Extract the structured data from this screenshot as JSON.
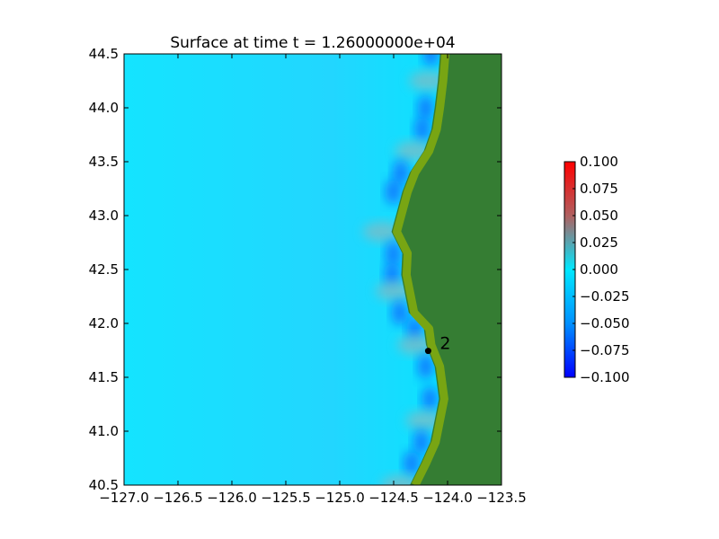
{
  "chart_data": {
    "type": "heatmap",
    "title": "Surface at time t = 1.26000000e+04",
    "xlabel": "",
    "ylabel": "",
    "xlim": [
      -127.0,
      -123.5
    ],
    "ylim": [
      40.5,
      44.5
    ],
    "x_ticks": [
      -127.0,
      -126.5,
      -126.0,
      -125.5,
      -125.0,
      -124.5,
      -124.0,
      -123.5
    ],
    "x_tick_labels": [
      "−127.0",
      "−126.5",
      "−126.0",
      "−125.5",
      "−125.0",
      "−124.5",
      "−124.0",
      "−123.5"
    ],
    "y_ticks": [
      40.5,
      41.0,
      41.5,
      42.0,
      42.5,
      43.0,
      43.5,
      44.0,
      44.5
    ],
    "y_tick_labels": [
      "40.5",
      "41.0",
      "41.5",
      "42.0",
      "42.5",
      "43.0",
      "43.5",
      "44.0",
      "44.5"
    ],
    "colorbar": {
      "range": [
        -0.1,
        0.1
      ],
      "ticks": [
        0.1,
        0.075,
        0.05,
        0.025,
        0.0,
        -0.025,
        -0.05,
        -0.075,
        -0.1
      ],
      "tick_labels": [
        "0.100",
        "0.075",
        "0.050",
        "0.025",
        "0.000",
        "−0.025",
        "−0.050",
        "−0.075",
        "−0.100"
      ],
      "colors": [
        "#0000ff",
        "#00e8ff",
        "#b06060",
        "#ff0000"
      ]
    },
    "field_colors": {
      "ocean": "#00e8ff",
      "ocean_light": "#26dcff",
      "land": "#357d33",
      "shore": "#7faa10",
      "positive_anomaly": "#88b8c0",
      "negative_anomaly": "#1060ff"
    },
    "coastline": [
      [
        -124.07,
        44.5
      ],
      [
        -124.09,
        44.25
      ],
      [
        -124.12,
        44.0
      ],
      [
        -124.15,
        43.8
      ],
      [
        -124.22,
        43.6
      ],
      [
        -124.35,
        43.4
      ],
      [
        -124.42,
        43.22
      ],
      [
        -124.52,
        42.85
      ],
      [
        -124.42,
        42.65
      ],
      [
        -124.43,
        42.45
      ],
      [
        -124.4,
        42.3
      ],
      [
        -124.36,
        42.1
      ],
      [
        -124.22,
        41.95
      ],
      [
        -124.2,
        41.8
      ],
      [
        -124.12,
        41.6
      ],
      [
        -124.08,
        41.3
      ],
      [
        -124.12,
        41.1
      ],
      [
        -124.16,
        40.9
      ],
      [
        -124.25,
        40.7
      ],
      [
        -124.35,
        40.5
      ]
    ],
    "markers": [
      {
        "label": "2",
        "lon": -124.18,
        "lat": 41.745
      }
    ]
  }
}
